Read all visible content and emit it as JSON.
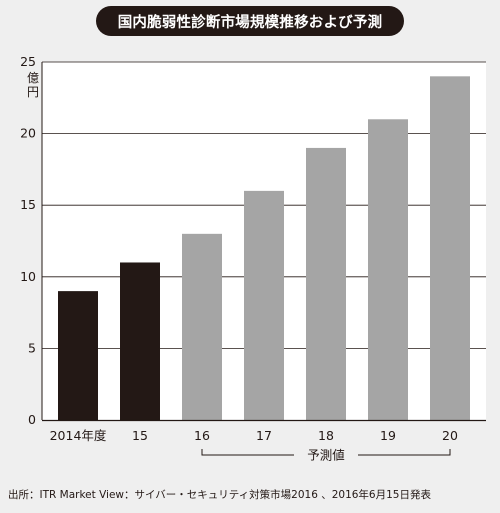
{
  "title": "国内脆弱性診断市場規模推移および予測",
  "source": "出所：ITR Market View：サイバー・セキュリティ対策市場2016 、2016年6月15日発表",
  "colors": {
    "background": "#efefef",
    "plot_background": "#ffffff",
    "actual_bar": "#231815",
    "forecast_bar": "#a5a5a5",
    "title_pill": "#231815"
  },
  "chart_data": {
    "type": "bar",
    "unit_label": "億円",
    "categories": [
      "2014年度",
      "15",
      "16",
      "17",
      "18",
      "19",
      "20"
    ],
    "values": [
      9,
      11,
      13,
      16,
      19,
      21,
      24
    ],
    "bar_kind": [
      "actual",
      "actual",
      "forecast",
      "forecast",
      "forecast",
      "forecast",
      "forecast"
    ],
    "forecast_label": "予測値",
    "forecast_range": [
      "16",
      "20"
    ],
    "ylim": [
      0,
      25
    ],
    "yticks": [
      0,
      5,
      10,
      15,
      20,
      25
    ],
    "grid": true
  }
}
